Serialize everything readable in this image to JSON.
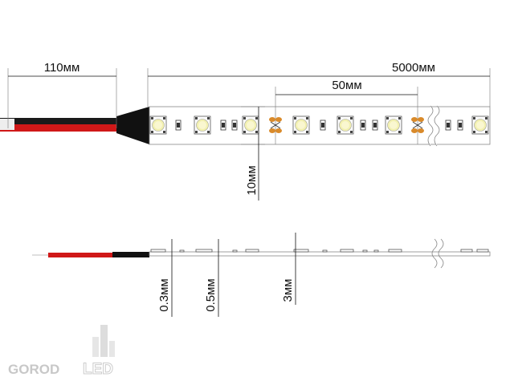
{
  "dimensions": {
    "wire_length": "110мм",
    "strip_length": "5000мм",
    "segment_length": "50мм",
    "strip_width": "10мм",
    "pcb_thickness": "0.3мм",
    "component_height": "0.5мм",
    "led_height": "3мм"
  },
  "logo": {
    "left": "GOROD",
    "right": "LED"
  }
}
